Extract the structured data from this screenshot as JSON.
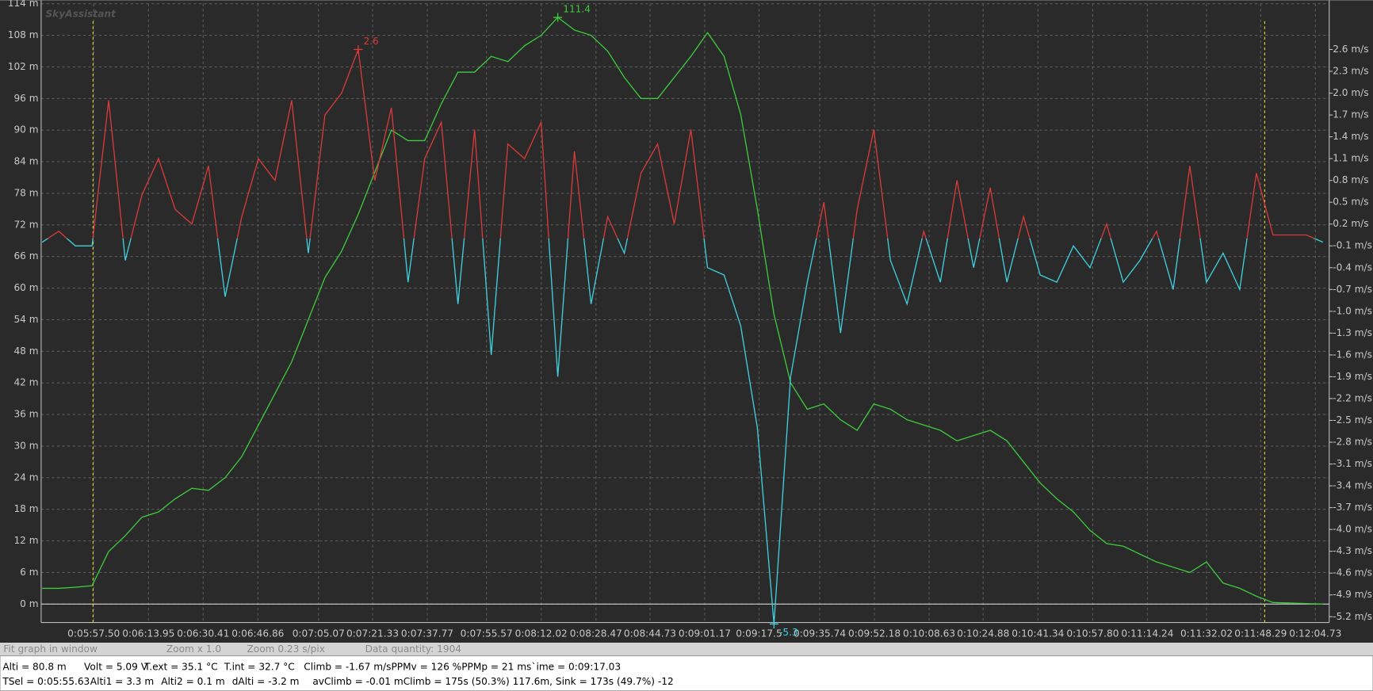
{
  "chart_data": {
    "type": "line",
    "watermark": "SkyAssistant",
    "x": [
      342,
      347,
      352,
      357,
      362,
      367,
      372,
      377,
      382,
      387,
      392,
      397,
      402,
      407,
      412,
      417,
      422,
      427,
      432,
      437,
      442,
      447,
      452,
      457,
      462,
      467,
      472,
      477,
      482,
      487,
      492,
      497,
      502,
      507,
      512,
      517,
      522,
      527,
      532,
      537,
      542,
      547,
      552,
      557,
      562,
      567,
      572,
      577,
      582,
      587,
      592,
      597,
      602,
      607,
      612,
      617,
      622,
      627,
      632,
      637,
      642,
      647,
      652,
      657,
      662,
      667,
      672,
      677,
      682,
      687,
      692,
      697,
      702,
      707,
      712,
      717,
      722,
      727
    ],
    "series": [
      {
        "name": "Alti",
        "color": "#3ec93e",
        "axis": "y",
        "values": [
          3,
          3,
          3.2,
          3.5,
          10,
          13,
          16.5,
          17.5,
          20,
          22,
          21.6,
          24,
          28,
          34,
          40,
          46,
          54,
          62,
          67,
          74,
          82,
          90,
          88,
          88,
          95,
          101,
          101,
          104,
          103,
          106,
          108,
          111.4,
          109,
          108,
          105,
          100,
          96,
          96,
          100,
          104,
          108.5,
          104,
          93,
          75,
          55,
          42,
          37,
          38,
          35,
          33,
          38,
          37,
          35,
          34,
          33,
          31,
          32,
          33,
          31,
          27,
          23,
          20,
          17.5,
          14,
          11.5,
          11,
          9.5,
          8,
          7,
          6,
          8,
          4,
          3,
          1.5,
          0.3,
          0.2,
          0.1,
          0
        ]
      },
      {
        "name": "Climb",
        "color": "#d83a3a",
        "negative_color": "#3fcfdf",
        "axis": "y2",
        "values": [
          -0.05,
          0.1,
          -0.1,
          -0.1,
          1.9,
          -0.3,
          0.6,
          1.1,
          0.4,
          0.2,
          1.0,
          -0.8,
          0.3,
          1.1,
          0.8,
          1.9,
          -0.2,
          1.7,
          2.0,
          2.6,
          0.8,
          1.8,
          -0.6,
          1.1,
          1.6,
          -0.9,
          1.5,
          -1.6,
          1.3,
          1.1,
          1.6,
          -1.9,
          1.2,
          -0.9,
          0.3,
          -0.2,
          0.9,
          1.3,
          0.2,
          1.5,
          -0.4,
          -0.5,
          -1.2,
          -2.6,
          -5.3,
          -1.9,
          -0.6,
          0.5,
          -1.3,
          0.4,
          1.5,
          -0.3,
          -0.9,
          0.1,
          -0.6,
          0.8,
          -0.4,
          0.7,
          -0.6,
          0.3,
          -0.5,
          -0.6,
          -0.1,
          -0.4,
          0.2,
          -0.6,
          -0.3,
          0.1,
          -0.7,
          1.0,
          -0.6,
          -0.2,
          -0.7,
          0.9,
          0.05,
          0.05,
          0.05,
          -0.05
        ]
      }
    ],
    "xlim": [
      341.7,
      728.9
    ],
    "xticks": [
      {
        "value": 357.5,
        "label": "0:05:57.50"
      },
      {
        "value": 373.95,
        "label": "0:06:13.95"
      },
      {
        "value": 390.41,
        "label": "0:06:30.41"
      },
      {
        "value": 406.86,
        "label": "0:06:46.86"
      },
      {
        "value": 425.07,
        "label": "0:07:05.07"
      },
      {
        "value": 441.33,
        "label": "0:07:21.33"
      },
      {
        "value": 457.77,
        "label": "0:07:37.77"
      },
      {
        "value": 475.57,
        "label": "0:07:55.57"
      },
      {
        "value": 492.02,
        "label": "0:08:12.02"
      },
      {
        "value": 508.47,
        "label": "0:08:28.47"
      },
      {
        "value": 524.73,
        "label": "0:08:44.73"
      },
      {
        "value": 541.17,
        "label": "0:09:01.17"
      },
      {
        "value": 557.5,
        "label": "0:09:17.5"
      },
      {
        "value": 575.74,
        "label": "0:09:35.74"
      },
      {
        "value": 592.18,
        "label": "0:09:52.18"
      },
      {
        "value": 608.63,
        "label": "0:10:08.63"
      },
      {
        "value": 624.88,
        "label": "0:10:24.88"
      },
      {
        "value": 641.34,
        "label": "0:10:41.34"
      },
      {
        "value": 657.8,
        "label": "0:10:57.80"
      },
      {
        "value": 674.24,
        "label": "0:11:14.24"
      },
      {
        "value": 692.02,
        "label": "0:11:32.02"
      },
      {
        "value": 708.29,
        "label": "0:11:48.29"
      },
      {
        "value": 724.73,
        "label": "0:12:04.73"
      }
    ],
    "ylim": [
      -3.5,
      114
    ],
    "yticks": [
      {
        "value": 0,
        "label": "0 m"
      },
      {
        "value": 6,
        "label": "6 m"
      },
      {
        "value": 12,
        "label": "12 m"
      },
      {
        "value": 18,
        "label": "18 m"
      },
      {
        "value": 24,
        "label": "24 m"
      },
      {
        "value": 30,
        "label": "30 m"
      },
      {
        "value": 36,
        "label": "36 m"
      },
      {
        "value": 42,
        "label": "42 m"
      },
      {
        "value": 48,
        "label": "48 m"
      },
      {
        "value": 54,
        "label": "54 m"
      },
      {
        "value": 60,
        "label": "60 m"
      },
      {
        "value": 66,
        "label": "66 m"
      },
      {
        "value": 72,
        "label": "72 m"
      },
      {
        "value": 78,
        "label": "78 m"
      },
      {
        "value": 84,
        "label": "84 m"
      },
      {
        "value": 90,
        "label": "90 m"
      },
      {
        "value": 96,
        "label": "96 m"
      },
      {
        "value": 102,
        "label": "102 m"
      },
      {
        "value": 108,
        "label": "108 m"
      },
      {
        "value": 114,
        "label": "114 m"
      }
    ],
    "y2lim": [
      -5.28,
      3.23
    ],
    "y2ticks": [
      {
        "value": 2.6,
        "label": "2.6 m/s"
      },
      {
        "value": 2.3,
        "label": "2.3 m/s"
      },
      {
        "value": 2.0,
        "label": "2.0 m/s"
      },
      {
        "value": 1.7,
        "label": "1.7 m/s"
      },
      {
        "value": 1.4,
        "label": "1.4 m/s"
      },
      {
        "value": 1.1,
        "label": "1.1 m/s"
      },
      {
        "value": 0.8,
        "label": "0.8 m/s"
      },
      {
        "value": 0.5,
        "label": "0.5 m/s"
      },
      {
        "value": 0.2,
        "label": "0.2 m/s"
      },
      {
        "value": -0.1,
        "label": "-0.1 m/s"
      },
      {
        "value": -0.4,
        "label": "-0.4 m/s"
      },
      {
        "value": -0.7,
        "label": "-0.7 m/s"
      },
      {
        "value": -1.0,
        "label": "-1.0 m/s"
      },
      {
        "value": -1.3,
        "label": "-1.3 m/s"
      },
      {
        "value": -1.6,
        "label": "-1.6 m/s"
      },
      {
        "value": -1.9,
        "label": "-1.9 m/s"
      },
      {
        "value": -2.2,
        "label": "-2.2 m/s"
      },
      {
        "value": -2.5,
        "label": "-2.5 m/s"
      },
      {
        "value": -2.8,
        "label": "-2.8 m/s"
      },
      {
        "value": -3.1,
        "label": "-3.1 m/s"
      },
      {
        "value": -3.4,
        "label": "-3.4 m/s"
      },
      {
        "value": -3.7,
        "label": "-3.7 m/s"
      },
      {
        "value": -4.0,
        "label": "-4.0 m/s"
      },
      {
        "value": -4.3,
        "label": "-4.3 m/s"
      },
      {
        "value": -4.6,
        "label": "-4.6 m/s"
      },
      {
        "value": -4.9,
        "label": "-4.9 m/s"
      },
      {
        "value": -5.2,
        "label": "-5.2 m/s"
      }
    ],
    "grid": true,
    "cursor_x": [
      357.3,
      709.5
    ],
    "cursor_color": "#e8e030",
    "annotations": [
      {
        "x": 497,
        "y": 111.4,
        "axis": "y",
        "color": "#3ec93e"
      },
      {
        "x": 437,
        "y": 2.6,
        "axis": "y2",
        "color": "#d83a3a"
      },
      {
        "x": 562,
        "y": -5.3,
        "axis": "y2",
        "color": "#3fcfdf"
      }
    ]
  },
  "status_bar": [
    "Fit graph in window",
    "Zoom x 1.0",
    "Zoom  0.23 s/pix",
    "Data quantity: 1904"
  ],
  "info_lines": [
    [
      "Alti = 80.8 m",
      "Volt = 5.09 V",
      "T.ext = 35.1 °C",
      "T.int = 32.7 °C",
      "Climb = -1.67 m/sPPMv = 126 %PPMp = 21 ms`ime = 0:09:17.03"
    ],
    [
      "TSel = 0:05:55.63",
      "Alti1 = 3.3 m",
      "Alti2 = 0.1 m",
      "dAlti = -3.2 m",
      "avClimb = -0.01 mClimb = 175s (50.3%) 117.6m, Sink = 173s (49.7%) -12"
    ]
  ]
}
